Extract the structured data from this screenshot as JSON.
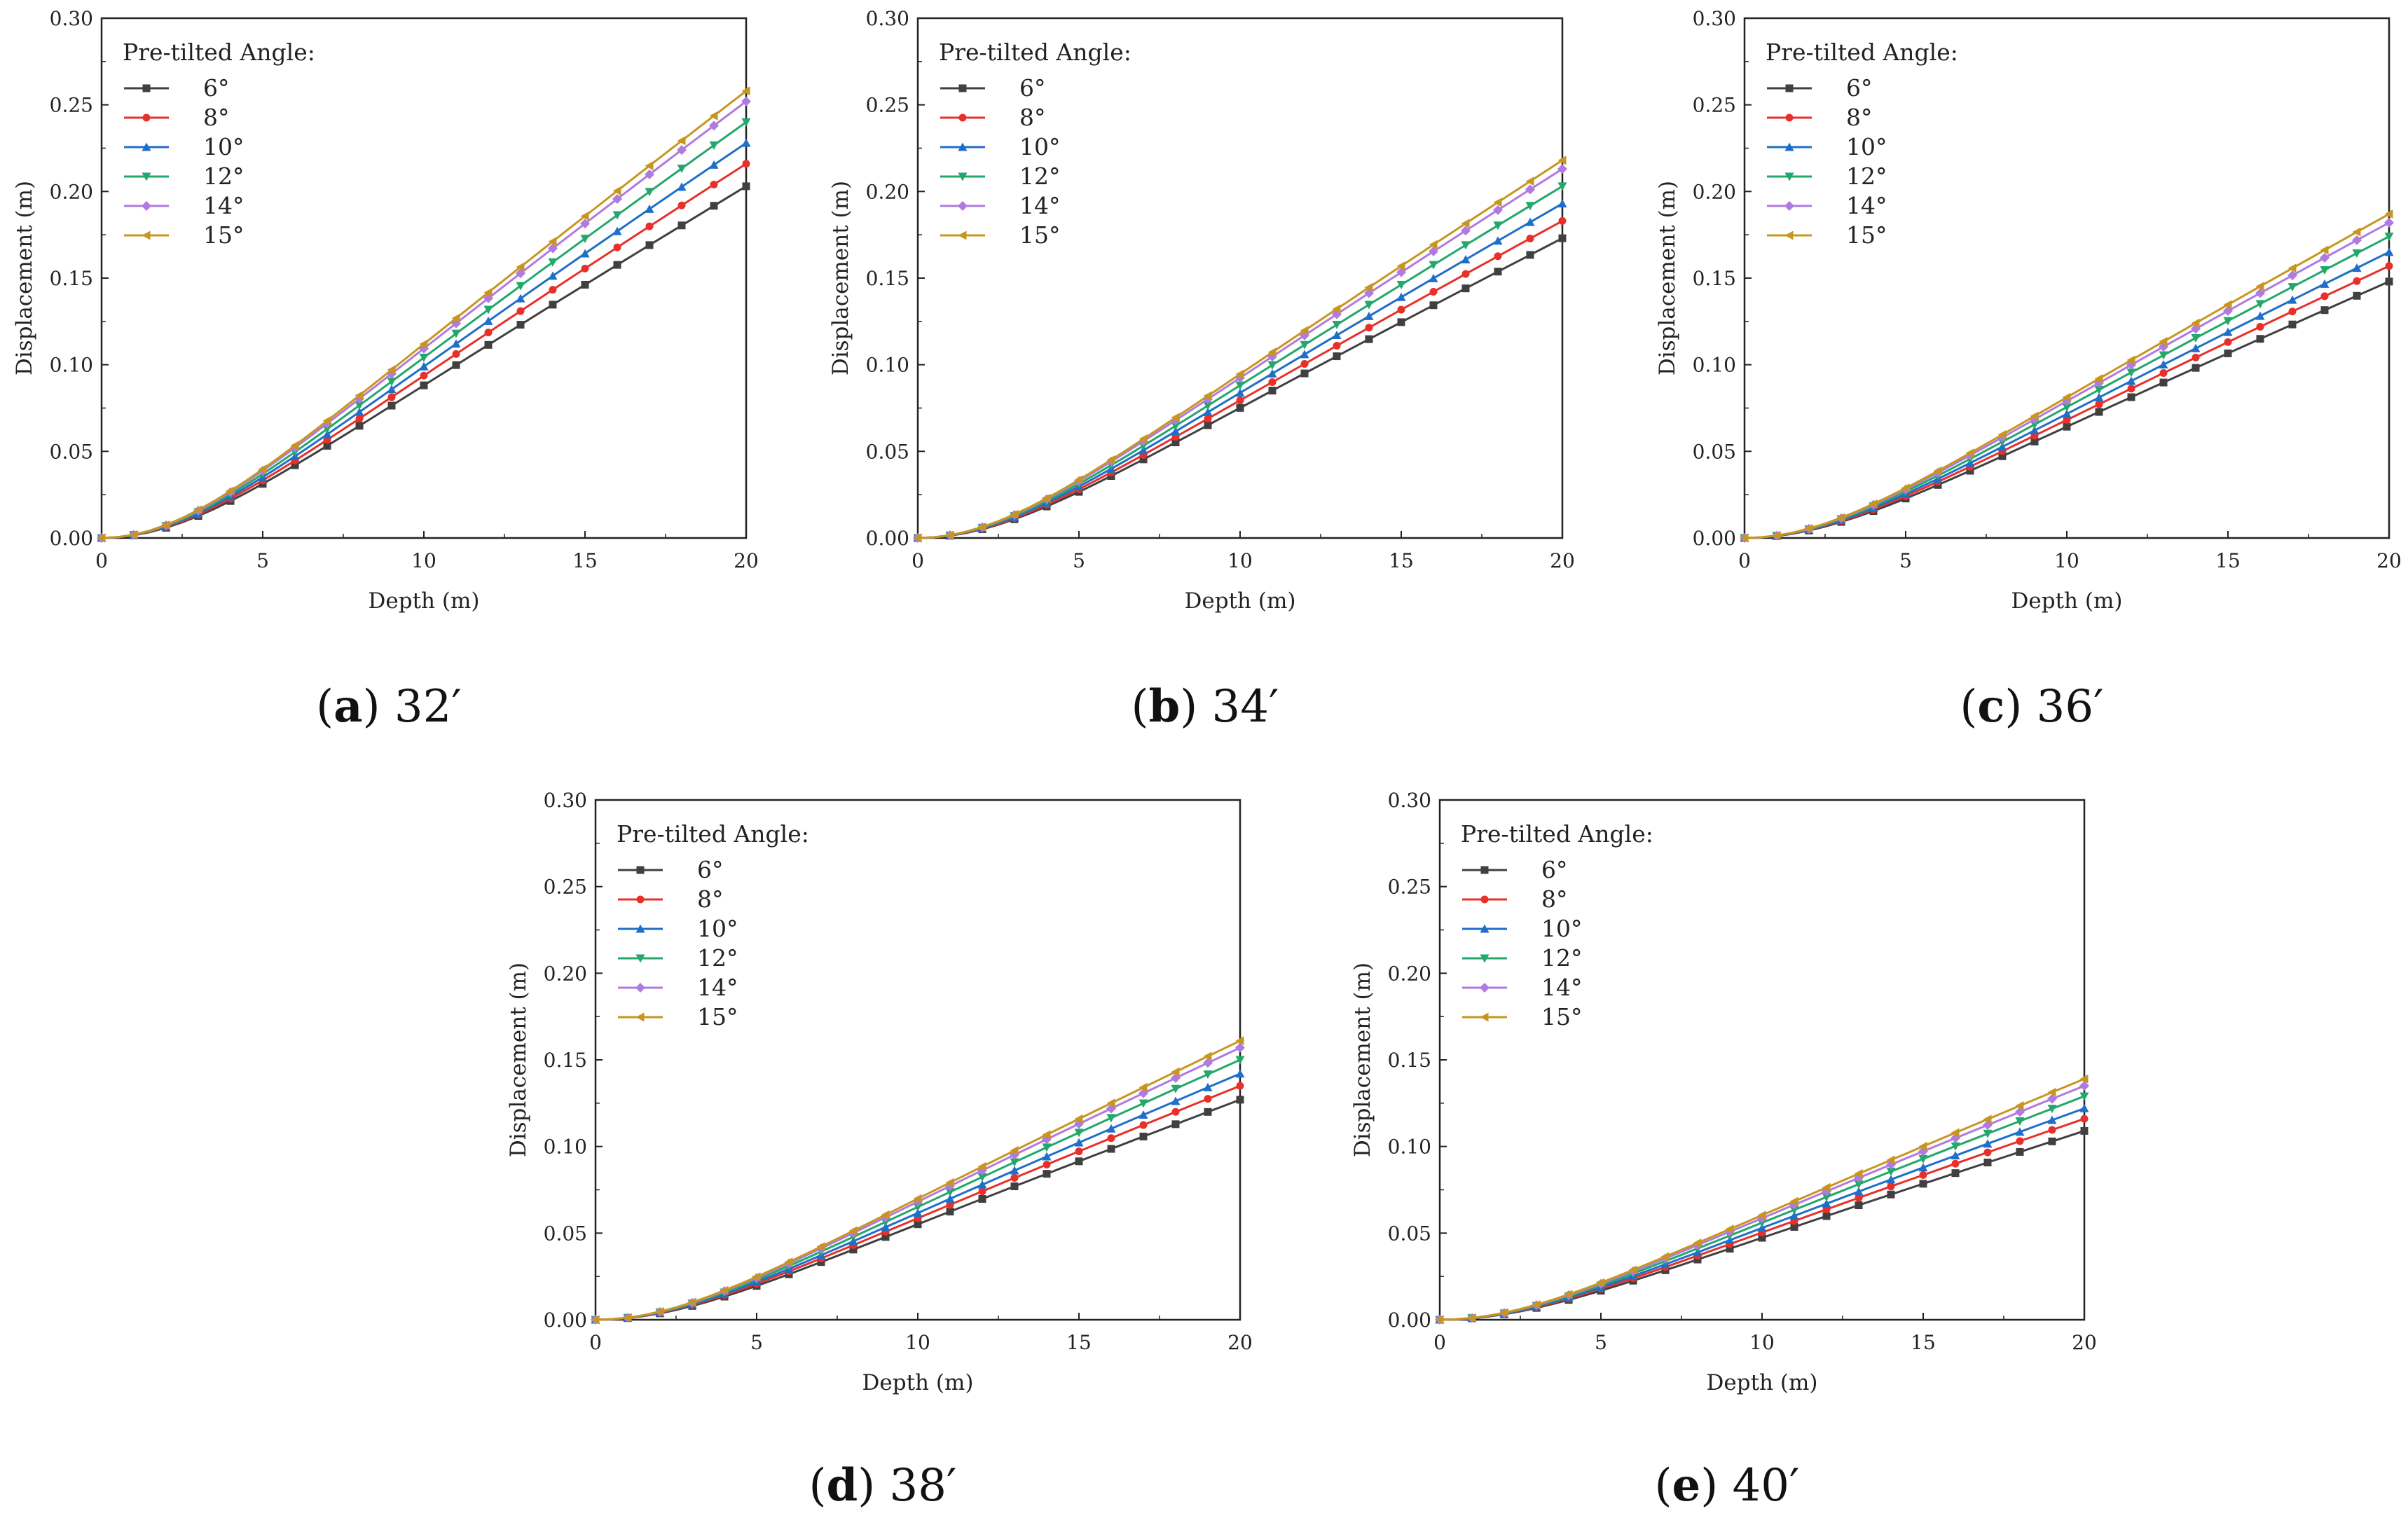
{
  "figure": {
    "legend_title": "Pre-tilted Angle:",
    "series_names": [
      "6°",
      "8°",
      "10°",
      "12°",
      "14°",
      "15°"
    ],
    "series_colors": [
      "#404040",
      "#e8302a",
      "#1f6fc9",
      "#22a86a",
      "#b07ae0",
      "#c8961e"
    ],
    "series_markers": [
      "square",
      "circle",
      "triangle-up",
      "triangle-down",
      "diamond",
      "triangle-left"
    ]
  },
  "chart_data": [
    {
      "type": "line",
      "caption_label": "a",
      "caption_text": "32′",
      "xlabel": "Depth (m)",
      "ylabel": "Displacement (m)",
      "xlim": [
        0,
        20
      ],
      "ylim": [
        0,
        0.3
      ],
      "xticks": [
        "0",
        "5",
        "10",
        "15",
        "20"
      ],
      "yticks": [
        "0.00",
        "0.05",
        "0.10",
        "0.15",
        "0.20",
        "0.25",
        "0.30"
      ],
      "grid": false,
      "legend_position": "top-left",
      "final_values": [
        0.203,
        0.216,
        0.228,
        0.24,
        0.252,
        0.258
      ]
    },
    {
      "type": "line",
      "caption_label": "b",
      "caption_text": "34′",
      "xlabel": "Depth (m)",
      "ylabel": "Displacement (m)",
      "xlim": [
        0,
        20
      ],
      "ylim": [
        0,
        0.3
      ],
      "xticks": [
        "0",
        "5",
        "10",
        "15",
        "20"
      ],
      "yticks": [
        "0.00",
        "0.05",
        "0.10",
        "0.15",
        "0.20",
        "0.25",
        "0.30"
      ],
      "grid": false,
      "legend_position": "top-left",
      "final_values": [
        0.173,
        0.183,
        0.193,
        0.203,
        0.213,
        0.218
      ]
    },
    {
      "type": "line",
      "caption_label": "c",
      "caption_text": "36′",
      "xlabel": "Depth (m)",
      "ylabel": "Displacement (m)",
      "xlim": [
        0,
        20
      ],
      "ylim": [
        0,
        0.3
      ],
      "xticks": [
        "0",
        "5",
        "10",
        "15",
        "20"
      ],
      "yticks": [
        "0.00",
        "0.05",
        "0.10",
        "0.15",
        "0.20",
        "0.25",
        "0.30"
      ],
      "grid": false,
      "legend_position": "top-left",
      "final_values": [
        0.148,
        0.157,
        0.165,
        0.174,
        0.182,
        0.187
      ]
    },
    {
      "type": "line",
      "caption_label": "d",
      "caption_text": "38′",
      "xlabel": "Depth (m)",
      "ylabel": "Displacement (m)",
      "xlim": [
        0,
        20
      ],
      "ylim": [
        0,
        0.3
      ],
      "xticks": [
        "0",
        "5",
        "10",
        "15",
        "20"
      ],
      "yticks": [
        "0.00",
        "0.05",
        "0.10",
        "0.15",
        "0.20",
        "0.25",
        "0.30"
      ],
      "grid": false,
      "legend_position": "top-left",
      "final_values": [
        0.127,
        0.135,
        0.142,
        0.15,
        0.157,
        0.161
      ]
    },
    {
      "type": "line",
      "caption_label": "e",
      "caption_text": "40′",
      "xlabel": "Depth (m)",
      "ylabel": "Displacement (m)",
      "xlim": [
        0,
        20
      ],
      "ylim": [
        0,
        0.3
      ],
      "xticks": [
        "0",
        "5",
        "10",
        "15",
        "20"
      ],
      "yticks": [
        "0.00",
        "0.05",
        "0.10",
        "0.15",
        "0.20",
        "0.25",
        "0.30"
      ],
      "grid": false,
      "legend_position": "top-left",
      "final_values": [
        0.109,
        0.116,
        0.122,
        0.129,
        0.135,
        0.139
      ]
    }
  ]
}
